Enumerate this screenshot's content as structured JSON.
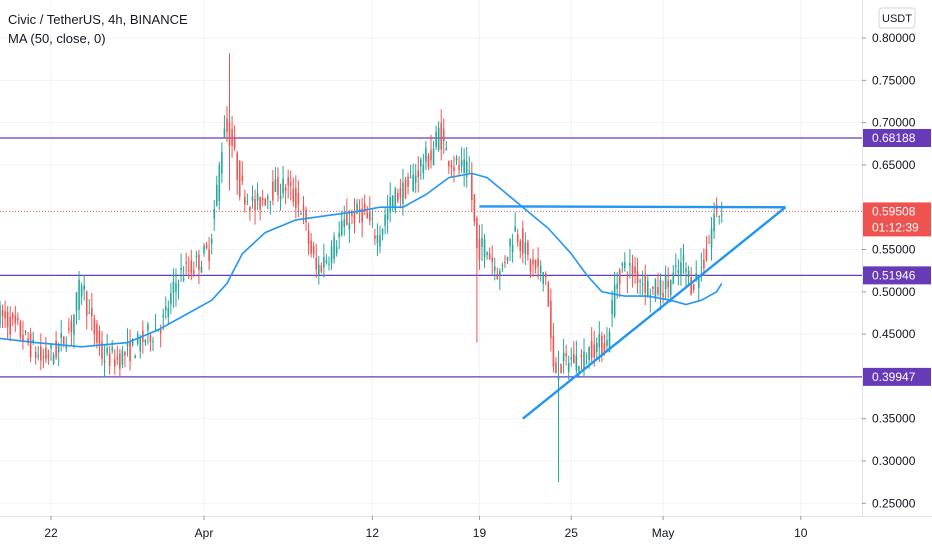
{
  "header": {
    "symbol_line": "Civic / TetherUS, 4h, BINANCE",
    "indicator_line": "MA (50, close, 0)"
  },
  "currency_button": "USDT",
  "colors": {
    "up": "#26a69a",
    "down": "#ef5350",
    "ma": "#2196f3",
    "trendline": "#2196f3",
    "level": "#673ab7",
    "current_price": "#ef5350"
  },
  "chart_data": {
    "type": "candlestick",
    "x_tick_labels": [
      "22",
      "Apr",
      "12",
      "19",
      "25",
      "May",
      "10"
    ],
    "y_tick_labels": [
      "0.80000",
      "0.75000",
      "0.70000",
      "0.65000",
      "0.55000",
      "0.50000",
      "0.45000",
      "0.35000",
      "0.30000",
      "0.25000"
    ],
    "y_tick_values": [
      0.8,
      0.75,
      0.7,
      0.65,
      0.55,
      0.5,
      0.45,
      0.35,
      0.3,
      0.25
    ],
    "ylim": [
      0.235,
      0.845
    ],
    "x_tick_dates": [
      "2021-03-22",
      "2021-04-01",
      "2021-04-12",
      "2021-04-19",
      "2021-04-25",
      "2021-05-01",
      "2021-05-10"
    ],
    "xlim": [
      "2021-03-18T16:00",
      "2021-05-14T00:00"
    ],
    "horizontal_levels": [
      {
        "value": 0.68188,
        "label": "0.68188"
      },
      {
        "value": 0.51946,
        "label": "0.51946"
      },
      {
        "value": 0.39947,
        "label": "0.39947"
      }
    ],
    "current_price": {
      "value": 0.59508,
      "label": "0.59508",
      "countdown": "01:12:39"
    },
    "trendlines": [
      {
        "from": {
          "date": "2021-04-19T00:00",
          "price": 0.601
        },
        "to": {
          "date": "2021-05-09T00:00",
          "price": 0.6
        }
      },
      {
        "from": {
          "date": "2021-04-21T20:00",
          "price": 0.35
        },
        "to": {
          "date": "2021-05-09T00:00",
          "price": 0.6
        }
      }
    ],
    "price_path": [
      [
        "2021-03-18T16:00",
        0.475
      ],
      [
        "2021-03-20T00:00",
        0.455
      ],
      [
        "2021-03-21T12:00",
        0.42
      ],
      [
        "2021-03-22T12:00",
        0.43
      ],
      [
        "2021-03-23T12:00",
        0.46
      ],
      [
        "2021-03-24T04:00",
        0.515
      ],
      [
        "2021-03-24T16:00",
        0.47
      ],
      [
        "2021-03-25T12:00",
        0.425
      ],
      [
        "2021-03-26T12:00",
        0.42
      ],
      [
        "2021-03-28T00:00",
        0.44
      ],
      [
        "2021-03-29T12:00",
        0.465
      ],
      [
        "2021-03-30T12:00",
        0.52
      ],
      [
        "2021-03-31T12:00",
        0.53
      ],
      [
        "2021-04-01T12:00",
        0.55
      ],
      [
        "2021-04-02T00:00",
        0.62
      ],
      [
        "2021-04-02T12:00",
        0.7
      ],
      [
        "2021-04-03T00:00",
        0.675
      ],
      [
        "2021-04-03T12:00",
        0.625
      ],
      [
        "2021-04-04T12:00",
        0.6
      ],
      [
        "2021-04-05T12:00",
        0.62
      ],
      [
        "2021-04-06T12:00",
        0.625
      ],
      [
        "2021-04-07T12:00",
        0.6
      ],
      [
        "2021-04-08T00:00",
        0.56
      ],
      [
        "2021-04-08T12:00",
        0.525
      ],
      [
        "2021-04-09T12:00",
        0.55
      ],
      [
        "2021-04-10T12:00",
        0.585
      ],
      [
        "2021-04-11T12:00",
        0.595
      ],
      [
        "2021-04-12T12:00",
        0.565
      ],
      [
        "2021-04-13T12:00",
        0.61
      ],
      [
        "2021-04-14T12:00",
        0.625
      ],
      [
        "2021-04-15T12:00",
        0.655
      ],
      [
        "2021-04-16T00:00",
        0.66
      ],
      [
        "2021-04-16T12:00",
        0.69
      ],
      [
        "2021-04-17T00:00",
        0.665
      ],
      [
        "2021-04-17T12:00",
        0.65
      ],
      [
        "2021-04-18T12:00",
        0.64
      ],
      [
        "2021-04-19T00:00",
        0.55
      ],
      [
        "2021-04-19T12:00",
        0.555
      ],
      [
        "2021-04-20T12:00",
        0.52
      ],
      [
        "2021-04-21T00:00",
        0.55
      ],
      [
        "2021-04-21T12:00",
        0.575
      ],
      [
        "2021-04-22T00:00",
        0.555
      ],
      [
        "2021-04-22T12:00",
        0.53
      ],
      [
        "2021-04-23T12:00",
        0.52
      ],
      [
        "2021-04-24T00:00",
        0.405
      ],
      [
        "2021-04-25T00:00",
        0.42
      ],
      [
        "2021-04-26T00:00",
        0.42
      ],
      [
        "2021-04-26T12:00",
        0.435
      ],
      [
        "2021-04-27T12:00",
        0.44
      ],
      [
        "2021-04-28T00:00",
        0.505
      ],
      [
        "2021-04-28T12:00",
        0.53
      ],
      [
        "2021-04-29T12:00",
        0.52
      ],
      [
        "2021-04-30T12:00",
        0.5
      ],
      [
        "2021-05-01T12:00",
        0.51
      ],
      [
        "2021-05-02T00:00",
        0.52
      ],
      [
        "2021-05-02T12:00",
        0.535
      ],
      [
        "2021-05-03T00:00",
        0.51
      ],
      [
        "2021-05-03T12:00",
        0.52
      ],
      [
        "2021-05-04T00:00",
        0.545
      ],
      [
        "2021-05-04T12:00",
        0.59
      ],
      [
        "2021-05-04T20:00",
        0.595
      ]
    ],
    "extreme_wicks": [
      {
        "date": "2021-04-02T16:00",
        "high": 0.782,
        "low": 0.62
      },
      {
        "date": "2021-04-24T04:00",
        "high": 0.43,
        "low": 0.275
      },
      {
        "date": "2021-04-18T20:00",
        "high": 0.59,
        "low": 0.44
      }
    ],
    "ma_path": [
      [
        "2021-03-18T16:00",
        0.445
      ],
      [
        "2021-03-21T00:00",
        0.44
      ],
      [
        "2021-03-24T00:00",
        0.435
      ],
      [
        "2021-03-27T00:00",
        0.44
      ],
      [
        "2021-03-29T00:00",
        0.455
      ],
      [
        "2021-03-31T00:00",
        0.475
      ],
      [
        "2021-04-01T12:00",
        0.49
      ],
      [
        "2021-04-02T12:00",
        0.51
      ],
      [
        "2021-04-03T12:00",
        0.545
      ],
      [
        "2021-04-05T00:00",
        0.57
      ],
      [
        "2021-04-07T00:00",
        0.585
      ],
      [
        "2021-04-09T00:00",
        0.59
      ],
      [
        "2021-04-11T00:00",
        0.595
      ],
      [
        "2021-04-12T12:00",
        0.6
      ],
      [
        "2021-04-14T00:00",
        0.6
      ],
      [
        "2021-04-15T12:00",
        0.615
      ],
      [
        "2021-04-17T00:00",
        0.635
      ],
      [
        "2021-04-18T12:00",
        0.64
      ],
      [
        "2021-04-19T12:00",
        0.635
      ],
      [
        "2021-04-20T12:00",
        0.62
      ],
      [
        "2021-04-21T12:00",
        0.605
      ],
      [
        "2021-04-22T12:00",
        0.59
      ],
      [
        "2021-04-23T12:00",
        0.575
      ],
      [
        "2021-04-25T00:00",
        0.545
      ],
      [
        "2021-04-26T00:00",
        0.52
      ],
      [
        "2021-04-27T00:00",
        0.5
      ],
      [
        "2021-04-28T12:00",
        0.495
      ],
      [
        "2021-04-30T00:00",
        0.495
      ],
      [
        "2021-05-01T12:00",
        0.49
      ],
      [
        "2021-05-02T12:00",
        0.485
      ],
      [
        "2021-05-03T12:00",
        0.49
      ],
      [
        "2021-05-04T12:00",
        0.5
      ],
      [
        "2021-05-04T20:00",
        0.51
      ]
    ]
  }
}
